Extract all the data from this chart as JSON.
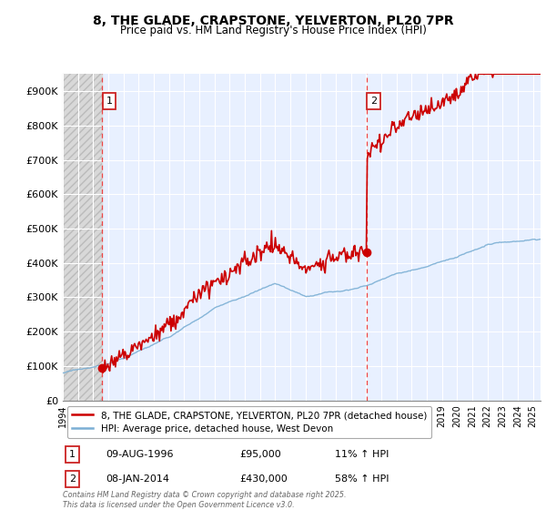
{
  "title1": "8, THE GLADE, CRAPSTONE, YELVERTON, PL20 7PR",
  "title2": "Price paid vs. HM Land Registry's House Price Index (HPI)",
  "ylim": [
    0,
    950000
  ],
  "xlim_start": 1994.0,
  "xlim_end": 2025.5,
  "sale1_date": 1996.6,
  "sale1_price": 95000,
  "sale1_label": "1",
  "sale2_date": 2014.03,
  "sale2_price": 430000,
  "sale2_label": "2",
  "red_color": "#cc0000",
  "blue_color": "#7bafd4",
  "legend_line1": "8, THE GLADE, CRAPSTONE, YELVERTON, PL20 7PR (detached house)",
  "legend_line2": "HPI: Average price, detached house, West Devon",
  "annotation1_date": "09-AUG-1996",
  "annotation1_price": "£95,000",
  "annotation1_hpi": "11% ↑ HPI",
  "annotation2_date": "08-JAN-2014",
  "annotation2_price": "£430,000",
  "annotation2_hpi": "58% ↑ HPI",
  "footnote": "Contains HM Land Registry data © Crown copyright and database right 2025.\nThis data is licensed under the Open Government Licence v3.0.",
  "yticks": [
    0,
    100000,
    200000,
    300000,
    400000,
    500000,
    600000,
    700000,
    800000,
    900000
  ],
  "ytick_labels": [
    "£0",
    "£100K",
    "£200K",
    "£300K",
    "£400K",
    "£500K",
    "£600K",
    "£700K",
    "£800K",
    "£900K"
  ],
  "xticks": [
    1994,
    1995,
    1996,
    1997,
    1998,
    1999,
    2000,
    2001,
    2002,
    2003,
    2004,
    2005,
    2006,
    2007,
    2008,
    2009,
    2010,
    2011,
    2012,
    2013,
    2014,
    2015,
    2016,
    2017,
    2018,
    2019,
    2020,
    2021,
    2022,
    2023,
    2024,
    2025
  ],
  "background_plot": "#e8f0ff",
  "hatch_color": "#d8d8d8",
  "grid_color": "white"
}
